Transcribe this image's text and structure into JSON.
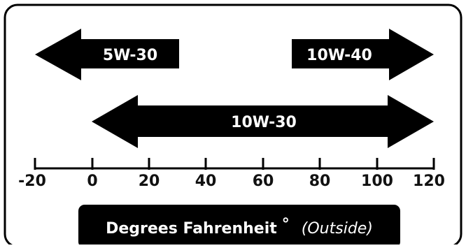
{
  "arrows": [
    {
      "label": "5W-30",
      "range_f": [
        "-20",
        30
      ],
      "direction": "left"
    },
    {
      "label": "10W-40",
      "range_f": [
        70,
        120
      ],
      "direction": "right"
    },
    {
      "label": "10W-30",
      "range_f": [
        0,
        120
      ],
      "direction": "both"
    }
  ],
  "axis": {
    "ticks": [
      "-20",
      "0",
      "20",
      "40",
      "60",
      "80",
      "100",
      "120"
    ],
    "footer_title": "Degrees Fahrenheit",
    "footer_degree": "°",
    "footer_note": "(Outside)"
  },
  "colors": {
    "ink": "#000000",
    "background": "#ffffff"
  }
}
